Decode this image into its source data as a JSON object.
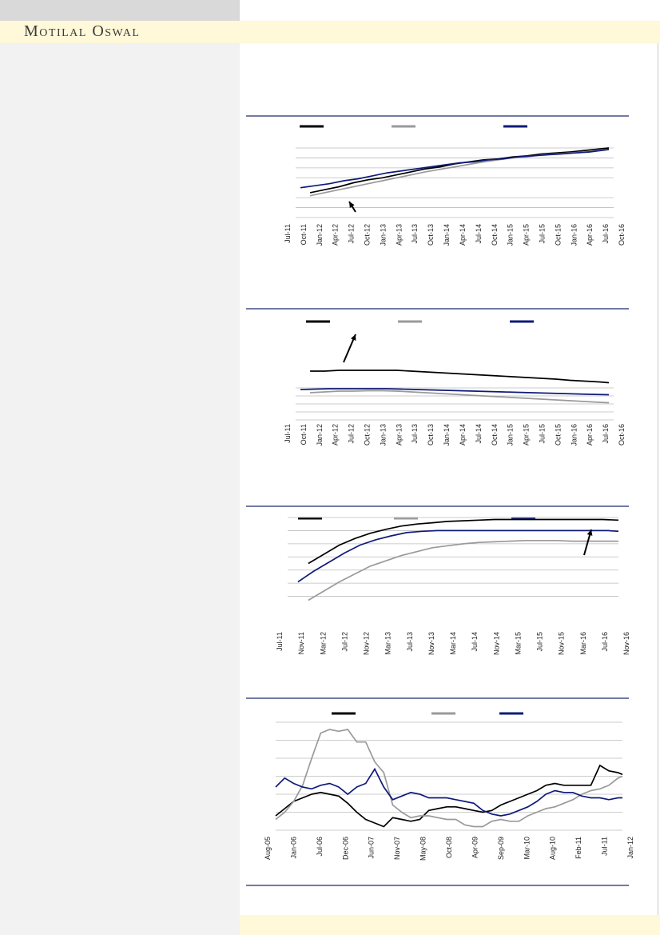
{
  "header": {
    "brand": "Motilal Oswal",
    "colors": {
      "band": "#fff8d9",
      "sidebar": "#f2f2f2",
      "sidebar_top": "#d9d9d9",
      "rule": "#1f2a6b"
    }
  },
  "chart_data": [
    {
      "type": "line",
      "title": "",
      "legend": [
        "",
        "",
        ""
      ],
      "colors": [
        "#000000",
        "#9a9a9a",
        "#0f1a78"
      ],
      "x_tick_labels": [
        "Jul-11",
        "Oct-11",
        "Jan-12",
        "Apr-12",
        "Jul-12",
        "Oct-12",
        "Jan-13",
        "Apr-13",
        "Jul-13",
        "Oct-13",
        "Jan-14",
        "Apr-14",
        "Jul-14",
        "Oct-14",
        "Jan-15",
        "Apr-15",
        "Jul-15",
        "Oct-15",
        "Jan-16",
        "Apr-16",
        "Jul-16",
        "Oct-16"
      ],
      "xlim": [
        0,
        66
      ],
      "ylim": [
        0,
        7
      ],
      "annotation": "arrow",
      "series": [
        {
          "name": "",
          "x": [
            3,
            6,
            9,
            12,
            15,
            18,
            21,
            24,
            27,
            30,
            33,
            36,
            39,
            42,
            45,
            48,
            51,
            54,
            57,
            60,
            63,
            65
          ],
          "values": [
            2.5,
            2.8,
            3.1,
            3.5,
            3.8,
            4.0,
            4.3,
            4.6,
            4.9,
            5.1,
            5.4,
            5.6,
            5.8,
            5.9,
            6.1,
            6.2,
            6.4,
            6.5,
            6.6,
            6.75,
            6.9,
            7.0
          ]
        },
        {
          "name": "",
          "x": [
            3,
            6,
            9,
            12,
            15,
            18,
            21,
            24,
            27,
            30,
            33,
            36,
            39,
            42,
            45,
            48,
            51,
            54,
            57,
            60,
            63,
            65
          ],
          "values": [
            2.2,
            2.5,
            2.8,
            3.1,
            3.4,
            3.7,
            4.0,
            4.3,
            4.6,
            4.85,
            5.1,
            5.35,
            5.6,
            5.8,
            6.0,
            6.1,
            6.3,
            6.4,
            6.5,
            6.6,
            6.75,
            6.85
          ]
        },
        {
          "name": "",
          "x": [
            1,
            4,
            7,
            10,
            13,
            16,
            19,
            22,
            25,
            28,
            31,
            34,
            37,
            40,
            43,
            46,
            49,
            52,
            55,
            58,
            61,
            65
          ],
          "values": [
            3.0,
            3.2,
            3.4,
            3.7,
            3.9,
            4.2,
            4.5,
            4.7,
            4.9,
            5.1,
            5.3,
            5.5,
            5.6,
            5.8,
            5.9,
            6.1,
            6.2,
            6.3,
            6.4,
            6.5,
            6.6,
            6.85
          ]
        }
      ]
    },
    {
      "type": "line",
      "title": "",
      "legend": [
        "",
        "",
        ""
      ],
      "colors": [
        "#000000",
        "#9a9a9a",
        "#0f1a78"
      ],
      "x_tick_labels": [
        "Jul-11",
        "Oct-11",
        "Jan-12",
        "Apr-12",
        "Jul-12",
        "Oct-12",
        "Jan-13",
        "Apr-13",
        "Jul-13",
        "Oct-13",
        "Jan-14",
        "Apr-14",
        "Jul-14",
        "Oct-14",
        "Jan-15",
        "Apr-15",
        "Jul-15",
        "Oct-15",
        "Jan-16",
        "Apr-16",
        "Jul-16",
        "Oct-16"
      ],
      "xlim": [
        0,
        66
      ],
      "ylim": [
        0,
        7
      ],
      "annotation": "arrow",
      "series": [
        {
          "name": "",
          "x": [
            3,
            6,
            9,
            12,
            15,
            18,
            21,
            24,
            27,
            30,
            33,
            36,
            39,
            42,
            45,
            48,
            51,
            54,
            57,
            60,
            63,
            65
          ],
          "values": [
            6.1,
            6.1,
            6.2,
            6.2,
            6.2,
            6.2,
            6.2,
            6.1,
            6.0,
            5.9,
            5.8,
            5.7,
            5.6,
            5.5,
            5.4,
            5.3,
            5.2,
            5.1,
            4.95,
            4.85,
            4.75,
            4.65
          ]
        },
        {
          "name": "",
          "x": [
            3,
            6,
            9,
            12,
            15,
            18,
            21,
            24,
            27,
            30,
            33,
            36,
            39,
            42,
            45,
            48,
            51,
            54,
            57,
            60,
            63,
            65
          ],
          "values": [
            3.4,
            3.5,
            3.6,
            3.6,
            3.65,
            3.65,
            3.6,
            3.5,
            3.4,
            3.3,
            3.2,
            3.1,
            3.0,
            2.9,
            2.8,
            2.7,
            2.6,
            2.5,
            2.4,
            2.3,
            2.2,
            2.15
          ]
        },
        {
          "name": "",
          "x": [
            1,
            4,
            7,
            10,
            13,
            16,
            19,
            22,
            25,
            28,
            31,
            34,
            37,
            40,
            43,
            46,
            49,
            52,
            55,
            58,
            61,
            65
          ],
          "values": [
            3.8,
            3.85,
            3.9,
            3.9,
            3.9,
            3.9,
            3.9,
            3.85,
            3.8,
            3.75,
            3.7,
            3.65,
            3.6,
            3.55,
            3.5,
            3.45,
            3.4,
            3.35,
            3.3,
            3.25,
            3.2,
            3.15
          ]
        }
      ]
    },
    {
      "type": "line",
      "title": "",
      "legend": [
        "",
        "",
        ""
      ],
      "colors": [
        "#000000",
        "#9a9a9a",
        "#0f1a78"
      ],
      "x_tick_labels": [
        "Jul-11",
        "Nov-11",
        "Mar-12",
        "Jul-12",
        "Nov-12",
        "Mar-13",
        "Jul-13",
        "Nov-13",
        "Mar-14",
        "Jul-14",
        "Nov-14",
        "Mar-15",
        "Jul-15",
        "Nov-15",
        "Mar-16",
        "Jul-16",
        "Nov-16"
      ],
      "xlim": [
        0,
        64
      ],
      "ylim": [
        0,
        7
      ],
      "annotation": "arrow",
      "series": [
        {
          "name": "",
          "x": [
            4,
            7,
            10,
            13,
            16,
            19,
            22,
            25,
            28,
            31,
            34,
            37,
            40,
            43,
            46,
            49,
            52,
            55,
            58,
            61,
            64
          ],
          "values": [
            3.5,
            4.2,
            4.9,
            5.4,
            5.8,
            6.1,
            6.35,
            6.5,
            6.6,
            6.7,
            6.75,
            6.8,
            6.85,
            6.85,
            6.85,
            6.85,
            6.85,
            6.85,
            6.85,
            6.85,
            6.8
          ]
        },
        {
          "name": "",
          "x": [
            4,
            7,
            10,
            13,
            16,
            19,
            22,
            25,
            28,
            31,
            34,
            37,
            40,
            43,
            46,
            49,
            52,
            55,
            58,
            61,
            64
          ],
          "values": [
            0.7,
            1.4,
            2.1,
            2.7,
            3.3,
            3.7,
            4.1,
            4.4,
            4.7,
            4.85,
            5.0,
            5.1,
            5.15,
            5.2,
            5.25,
            5.25,
            5.25,
            5.2,
            5.2,
            5.2,
            5.2
          ]
        },
        {
          "name": "",
          "x": [
            2,
            5,
            8,
            11,
            14,
            17,
            20,
            23,
            26,
            29,
            32,
            35,
            38,
            41,
            44,
            47,
            50,
            53,
            56,
            59,
            62,
            64
          ],
          "values": [
            2.1,
            2.9,
            3.6,
            4.3,
            4.9,
            5.3,
            5.6,
            5.85,
            5.95,
            6.0,
            6.0,
            6.0,
            6.0,
            6.0,
            6.0,
            6.0,
            6.0,
            6.0,
            6.0,
            6.0,
            6.0,
            5.95
          ]
        }
      ]
    },
    {
      "type": "line",
      "title": "",
      "legend": [
        "",
        "",
        ""
      ],
      "colors": [
        "#000000",
        "#9a9a9a",
        "#0f1a78"
      ],
      "x_tick_labels": [
        "Aug-05",
        "Jan-06",
        "Jul-06",
        "Dec-06",
        "Jun-07",
        "Nov-07",
        "May-08",
        "Oct-08",
        "Apr-09",
        "Sep-09",
        "Mar-10",
        "Aug-10",
        "Feb-11",
        "Jul-11",
        "Jan-12"
      ],
      "xlim": [
        0,
        77
      ],
      "ylim": [
        0,
        6
      ],
      "annotation": "",
      "series": [
        {
          "name": "",
          "x": [
            0,
            2,
            4,
            6,
            8,
            10,
            12,
            14,
            16,
            18,
            20,
            22,
            24,
            26,
            28,
            30,
            32,
            34,
            36,
            38,
            40,
            42,
            44,
            46,
            48,
            50,
            52,
            54,
            56,
            58,
            60,
            62,
            64,
            66,
            68,
            70,
            72,
            74,
            76,
            77
          ],
          "values": [
            0.8,
            1.2,
            1.6,
            1.8,
            2.0,
            2.1,
            2.0,
            1.9,
            1.5,
            1.0,
            0.6,
            0.4,
            0.2,
            0.7,
            0.6,
            0.5,
            0.6,
            1.1,
            1.2,
            1.3,
            1.3,
            1.2,
            1.1,
            1.0,
            1.1,
            1.4,
            1.6,
            1.8,
            2.0,
            2.2,
            2.5,
            2.6,
            2.5,
            2.5,
            2.5,
            2.5,
            3.6,
            3.3,
            3.2,
            3.1
          ]
        },
        {
          "name": "",
          "x": [
            0,
            2,
            4,
            6,
            8,
            10,
            12,
            14,
            16,
            18,
            20,
            22,
            24,
            26,
            28,
            30,
            32,
            34,
            36,
            38,
            40,
            42,
            44,
            46,
            48,
            50,
            52,
            54,
            56,
            58,
            60,
            62,
            64,
            66,
            68,
            70,
            72,
            74,
            76,
            77
          ],
          "values": [
            0.6,
            1.0,
            1.6,
            2.5,
            4.0,
            5.4,
            5.6,
            5.5,
            5.6,
            4.9,
            4.9,
            3.8,
            3.2,
            1.4,
            1.0,
            0.7,
            0.8,
            0.8,
            0.7,
            0.6,
            0.6,
            0.3,
            0.2,
            0.2,
            0.5,
            0.6,
            0.5,
            0.5,
            0.8,
            1.0,
            1.2,
            1.3,
            1.5,
            1.7,
            2.0,
            2.2,
            2.3,
            2.5,
            2.9,
            3.0
          ]
        },
        {
          "name": "",
          "x": [
            0,
            2,
            4,
            6,
            8,
            10,
            12,
            14,
            16,
            18,
            20,
            22,
            24,
            26,
            28,
            30,
            32,
            34,
            36,
            38,
            40,
            42,
            44,
            46,
            48,
            50,
            52,
            54,
            56,
            58,
            60,
            62,
            64,
            66,
            68,
            70,
            72,
            74,
            76,
            77
          ],
          "values": [
            2.4,
            2.9,
            2.6,
            2.4,
            2.3,
            2.5,
            2.6,
            2.4,
            2.0,
            2.4,
            2.6,
            3.4,
            2.4,
            1.7,
            1.9,
            2.1,
            2.0,
            1.8,
            1.8,
            1.8,
            1.7,
            1.6,
            1.5,
            1.1,
            0.9,
            0.8,
            0.9,
            1.1,
            1.3,
            1.6,
            2.0,
            2.2,
            2.1,
            2.1,
            1.9,
            1.8,
            1.8,
            1.7,
            1.8,
            1.8
          ]
        }
      ]
    }
  ]
}
